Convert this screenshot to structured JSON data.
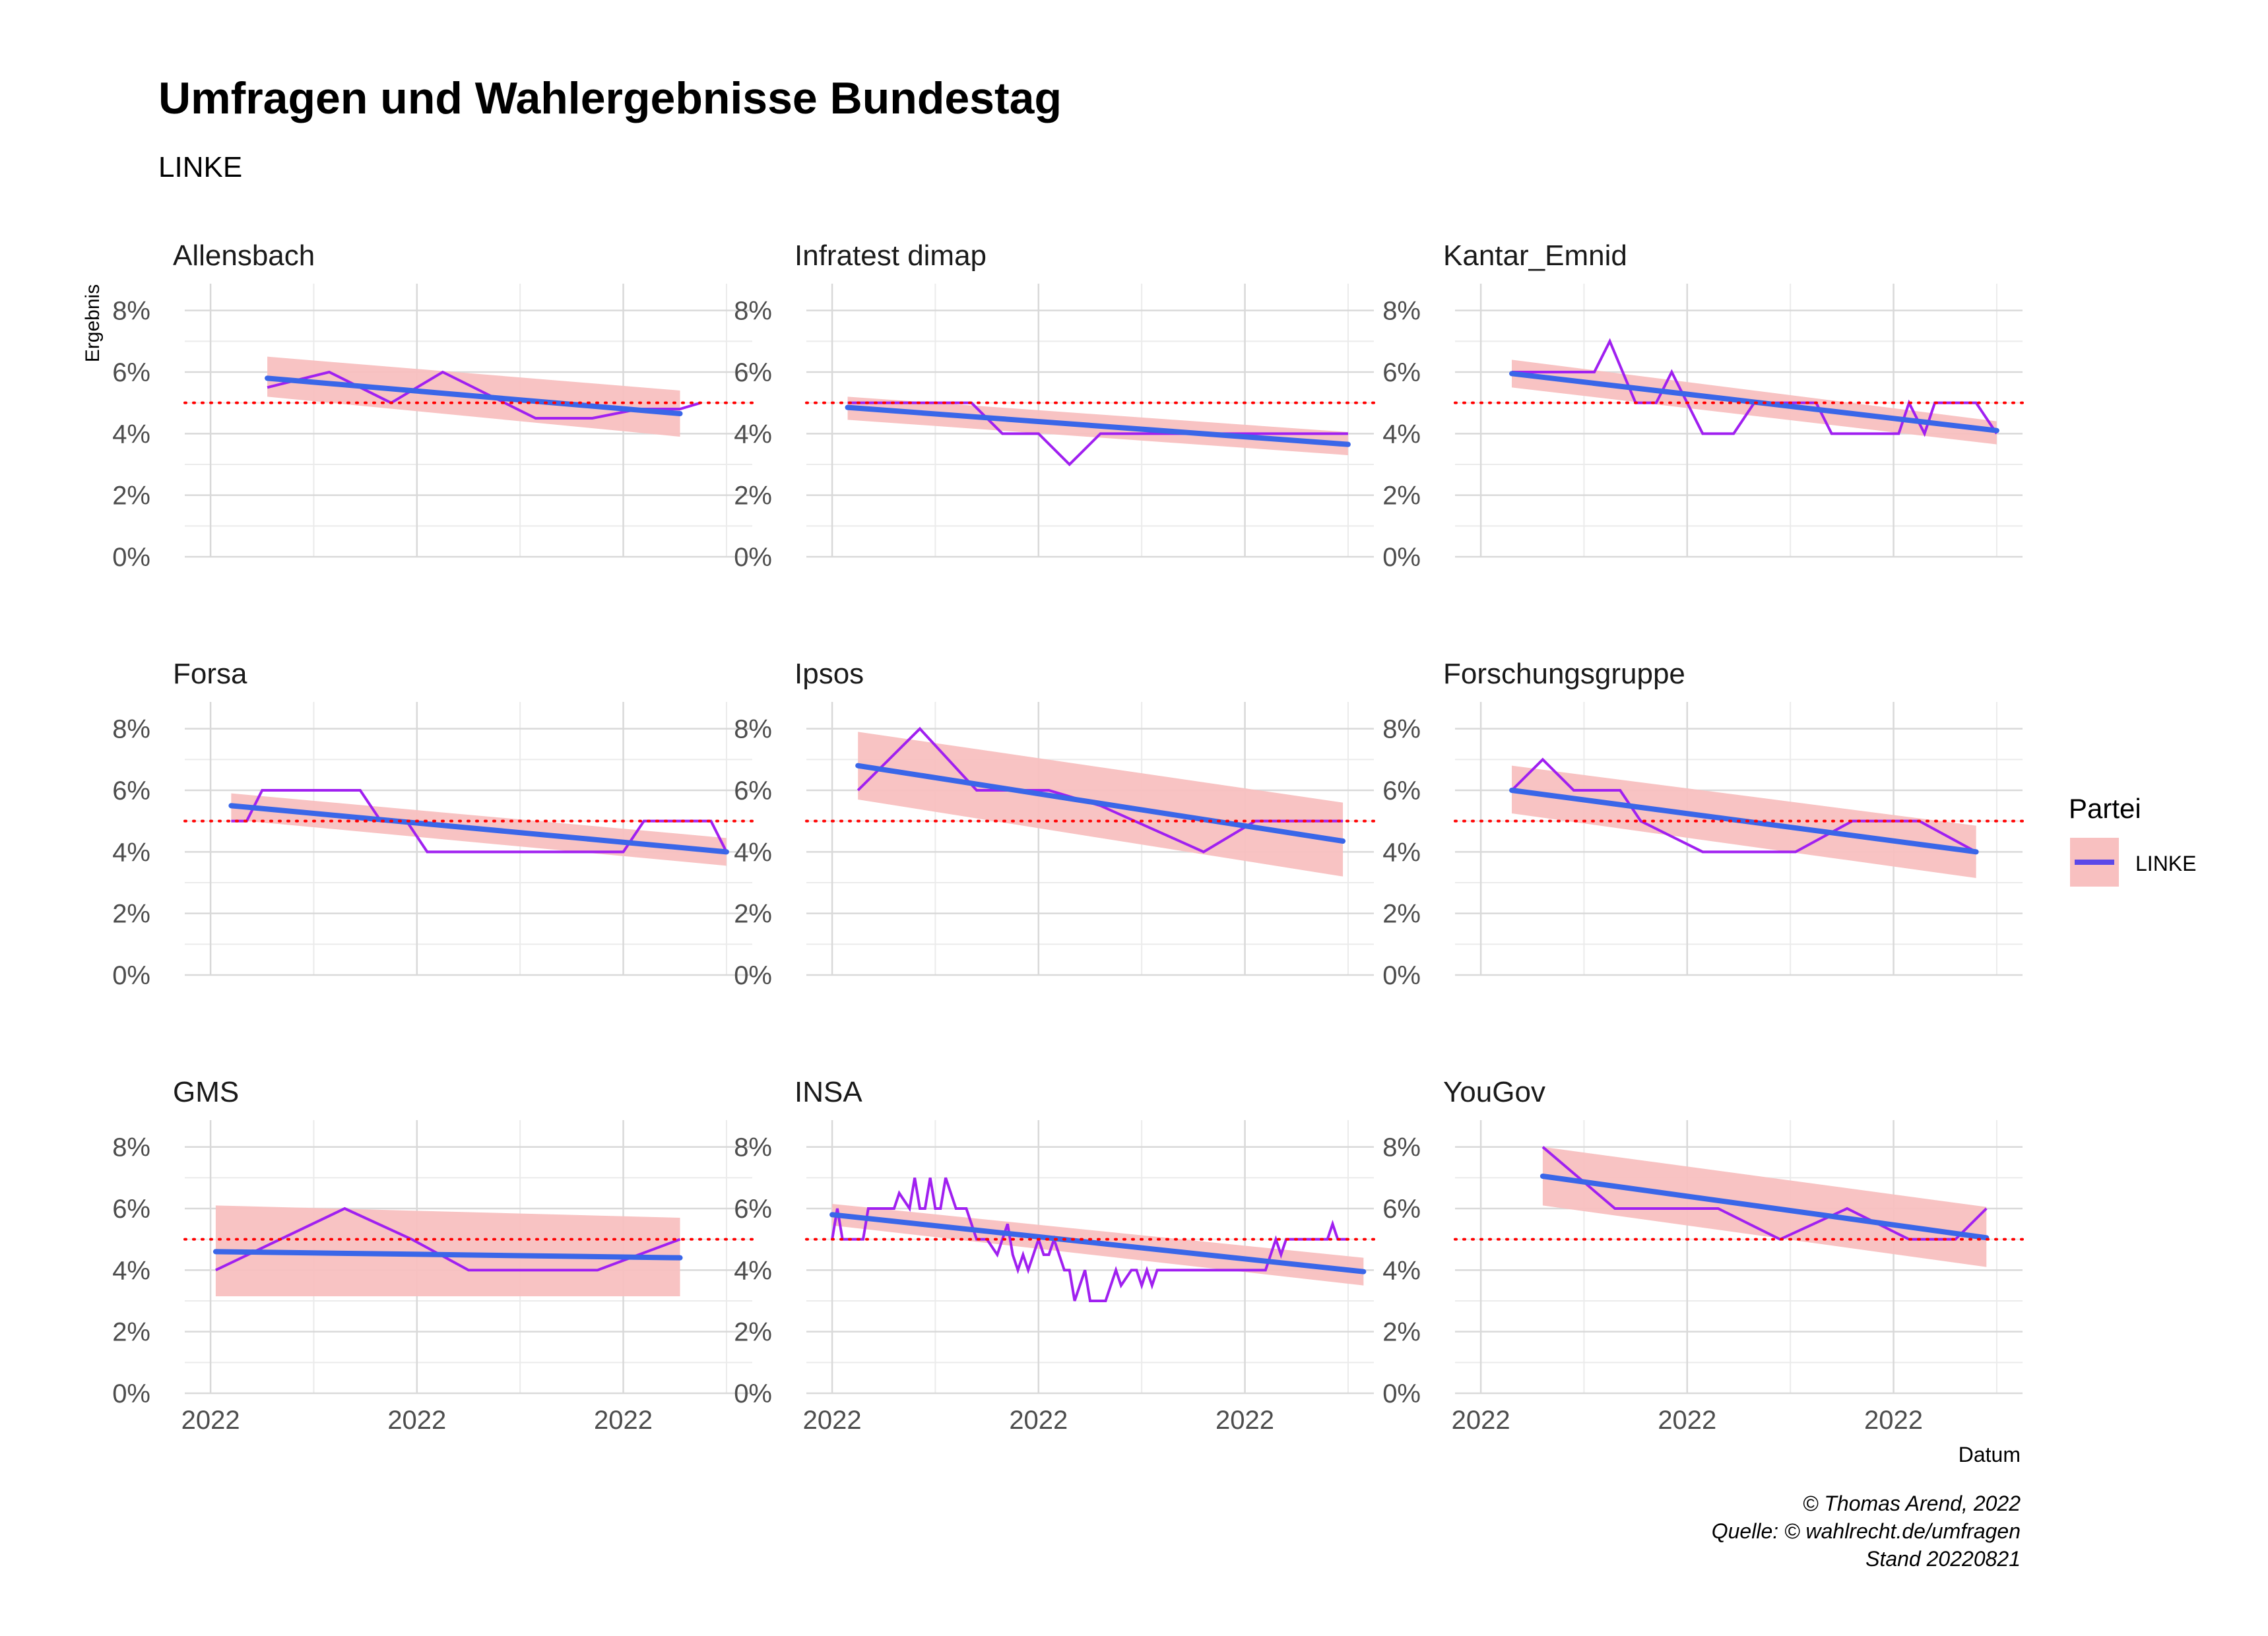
{
  "title": "Umfragen und Wahlergebnisse Bundestag",
  "subtitle": "LINKE",
  "ylabel": "Ergebnis",
  "xlabel": "Datum",
  "legend": {
    "title": "Partei",
    "label": "LINKE",
    "position": "right"
  },
  "caption": [
    "© Thomas Arend, 2022",
    "Quelle: © wahlrecht.de/umfragen",
    "Stand 20220821"
  ],
  "colors": {
    "poll_line": "#a020f0",
    "trend": "#3a66e8",
    "band": "#f8c0c0",
    "threshold": "#ff0000",
    "grid": "#d9d9d9"
  },
  "chart_data": {
    "type": "line",
    "threshold": 5,
    "ylim": [
      0,
      8.4
    ],
    "yticks": [
      0,
      2,
      4,
      6,
      8
    ],
    "ytick_labels": [
      "0%",
      "2%",
      "4%",
      "6%",
      "8%"
    ],
    "xlim": [
      -0.05,
      1.05
    ],
    "xticks": [
      0,
      0.4,
      0.8
    ],
    "xtick_labels": [
      "2022",
      "2022",
      "2022"
    ],
    "grid": true,
    "panels": [
      {
        "name": "Allensbach",
        "x": [
          0.11,
          0.23,
          0.35,
          0.45,
          0.57,
          0.63,
          0.74,
          0.83,
          0.91,
          0.95
        ],
        "y": [
          5.5,
          6.0,
          5.0,
          6.0,
          5.0,
          4.5,
          4.5,
          4.8,
          4.8,
          5.0
        ],
        "trend": [
          [
            0.11,
            5.8
          ],
          [
            0.91,
            4.65
          ]
        ],
        "band_upper": [
          6.5,
          5.4
        ],
        "band_lower": [
          5.2,
          3.9
        ]
      },
      {
        "name": "Infratest dimap",
        "x": [
          0.03,
          0.18,
          0.27,
          0.33,
          0.4,
          0.46,
          0.52,
          0.58,
          0.64,
          0.7,
          0.76,
          1.0
        ],
        "y": [
          5.0,
          5.0,
          5.0,
          4.0,
          4.0,
          3.0,
          4.0,
          4.0,
          4.0,
          4.0,
          4.0,
          4.0
        ],
        "trend": [
          [
            0.03,
            4.85
          ],
          [
            1.0,
            3.65
          ]
        ],
        "band_upper": [
          5.2,
          4.05
        ],
        "band_lower": [
          4.45,
          3.3
        ]
      },
      {
        "name": "Kantar_Emnid",
        "x": [
          0.06,
          0.22,
          0.25,
          0.3,
          0.34,
          0.37,
          0.43,
          0.49,
          0.53,
          0.57,
          0.65,
          0.68,
          0.81,
          0.83,
          0.86,
          0.88,
          0.96,
          1.0
        ],
        "y": [
          6.0,
          6.0,
          7.0,
          5.0,
          5.0,
          6.0,
          4.0,
          4.0,
          5.0,
          5.0,
          5.0,
          4.0,
          4.0,
          5.0,
          4.0,
          5.0,
          5.0,
          4.0
        ],
        "trend": [
          [
            0.06,
            5.95
          ],
          [
            1.0,
            4.1
          ]
        ],
        "band_upper": [
          6.4,
          4.4
        ],
        "band_lower": [
          5.5,
          3.65
        ]
      },
      {
        "name": "Forsa",
        "x": [
          0.04,
          0.07,
          0.1,
          0.29,
          0.33,
          0.38,
          0.42,
          0.8,
          0.84,
          0.97,
          1.0
        ],
        "y": [
          5.0,
          5.0,
          6.0,
          6.0,
          5.0,
          5.0,
          4.0,
          4.0,
          5.0,
          5.0,
          4.0
        ],
        "trend": [
          [
            0.04,
            5.5
          ],
          [
            1.0,
            4.0
          ]
        ],
        "band_upper": [
          5.9,
          4.45
        ],
        "band_lower": [
          5.05,
          3.55
        ]
      },
      {
        "name": "Ipsos",
        "x": [
          0.05,
          0.17,
          0.28,
          0.42,
          0.52,
          0.72,
          0.82,
          0.99
        ],
        "y": [
          6.0,
          8.0,
          6.0,
          6.0,
          5.5,
          4.0,
          5.0,
          5.0
        ],
        "trend": [
          [
            0.05,
            6.8
          ],
          [
            0.99,
            4.35
          ]
        ],
        "band_upper": [
          7.9,
          5.6
        ],
        "band_lower": [
          5.7,
          3.2
        ]
      },
      {
        "name": "Forschungsgruppe",
        "x": [
          0.06,
          0.12,
          0.18,
          0.27,
          0.31,
          0.43,
          0.61,
          0.72,
          0.85,
          0.96
        ],
        "y": [
          6.0,
          7.0,
          6.0,
          6.0,
          5.0,
          4.0,
          4.0,
          5.0,
          5.0,
          4.0
        ],
        "trend": [
          [
            0.06,
            6.0
          ],
          [
            0.96,
            4.0
          ]
        ],
        "band_upper": [
          6.8,
          4.85
        ],
        "band_lower": [
          5.25,
          3.15
        ]
      },
      {
        "name": "GMS",
        "x": [
          0.01,
          0.26,
          0.39,
          0.5,
          0.75,
          0.91
        ],
        "y": [
          4.0,
          6.0,
          5.0,
          4.0,
          4.0,
          5.0
        ],
        "trend": [
          [
            0.01,
            4.6
          ],
          [
            0.91,
            4.4
          ]
        ],
        "band_upper": [
          6.1,
          5.7
        ],
        "band_lower": [
          3.15,
          3.15
        ]
      },
      {
        "name": "INSA",
        "x": [
          0.0,
          0.01,
          0.02,
          0.03,
          0.04,
          0.06,
          0.07,
          0.08,
          0.1,
          0.11,
          0.12,
          0.13,
          0.15,
          0.16,
          0.17,
          0.18,
          0.19,
          0.2,
          0.21,
          0.22,
          0.23,
          0.24,
          0.25,
          0.26,
          0.28,
          0.3,
          0.32,
          0.33,
          0.34,
          0.35,
          0.36,
          0.37,
          0.38,
          0.39,
          0.4,
          0.41,
          0.42,
          0.43,
          0.44,
          0.45,
          0.46,
          0.47,
          0.48,
          0.49,
          0.5,
          0.51,
          0.52,
          0.53,
          0.54,
          0.55,
          0.56,
          0.58,
          0.59,
          0.6,
          0.61,
          0.62,
          0.63,
          0.64,
          0.65,
          0.66,
          0.67,
          0.68,
          0.7,
          0.72,
          0.74,
          0.76,
          0.78,
          0.8,
          0.82,
          0.84,
          0.85,
          0.86,
          0.87,
          0.88,
          0.89,
          0.9,
          0.92,
          0.94,
          0.96,
          0.97,
          0.98,
          0.99,
          1.0
        ],
        "y": [
          5.0,
          6.0,
          5.0,
          5.0,
          5.0,
          5.0,
          6.0,
          6.0,
          6.0,
          6.0,
          6.0,
          6.5,
          6.0,
          7.0,
          6.0,
          6.0,
          7.0,
          6.0,
          6.0,
          7.0,
          6.5,
          6.0,
          6.0,
          6.0,
          5.0,
          5.0,
          4.5,
          5.0,
          5.5,
          4.5,
          4.0,
          4.5,
          4.0,
          4.5,
          5.0,
          4.5,
          4.5,
          5.0,
          4.5,
          4.0,
          4.0,
          3.0,
          3.5,
          4.0,
          3.0,
          3.0,
          3.0,
          3.0,
          3.5,
          4.0,
          3.5,
          4.0,
          4.0,
          3.5,
          4.0,
          3.5,
          4.0,
          4.0,
          4.0,
          4.0,
          4.0,
          4.0,
          4.0,
          4.0,
          4.0,
          4.0,
          4.0,
          4.0,
          4.0,
          4.0,
          4.5,
          5.0,
          4.5,
          5.0,
          5.0,
          5.0,
          5.0,
          5.0,
          5.0,
          5.5,
          5.0,
          5.0,
          5.0
        ],
        "trend": [
          [
            0.0,
            5.8
          ],
          [
            1.03,
            3.95
          ]
        ],
        "band_upper": [
          6.15,
          4.4
        ],
        "band_lower": [
          5.45,
          3.5
        ]
      },
      {
        "name": "YouGov",
        "x": [
          0.12,
          0.26,
          0.3,
          0.46,
          0.58,
          0.71,
          0.83,
          0.92,
          0.98
        ],
        "y": [
          8.0,
          6.0,
          6.0,
          6.0,
          5.0,
          6.0,
          5.0,
          5.0,
          6.0
        ],
        "trend": [
          [
            0.12,
            7.05
          ],
          [
            0.98,
            5.05
          ]
        ],
        "band_upper": [
          8.0,
          6.05
        ],
        "band_lower": [
          6.1,
          4.1
        ]
      }
    ]
  }
}
